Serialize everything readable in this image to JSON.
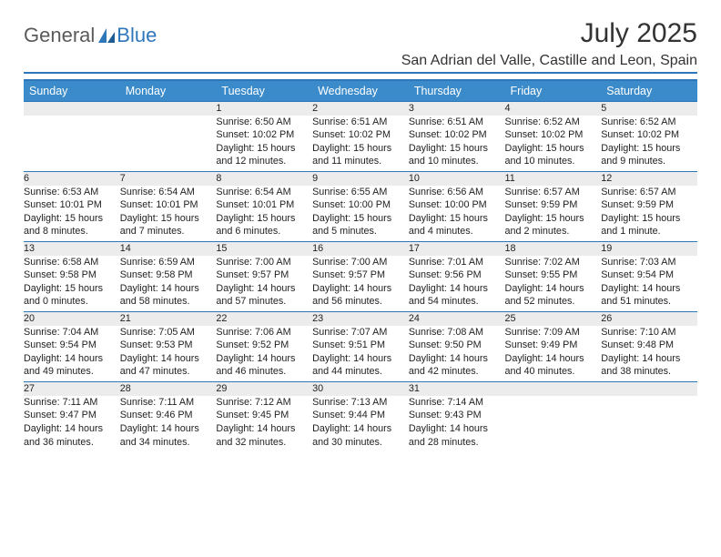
{
  "logo": {
    "general": "General",
    "blue": "Blue"
  },
  "title": "July 2025",
  "location": "San Adrian del Valle, Castille and Leon, Spain",
  "colors": {
    "header_bg": "#3b8bca",
    "accent_line": "#2f77bb",
    "daynum_bg": "#ececec",
    "text": "#222222",
    "logo_gray": "#5a5a5a",
    "logo_blue": "#2f77bb"
  },
  "table": {
    "columns": [
      "Sunday",
      "Monday",
      "Tuesday",
      "Wednesday",
      "Thursday",
      "Friday",
      "Saturday"
    ],
    "weeks": [
      {
        "nums": [
          "",
          "",
          "1",
          "2",
          "3",
          "4",
          "5"
        ],
        "cells": [
          {
            "sunrise": "",
            "sunset": "",
            "daylight": ""
          },
          {
            "sunrise": "",
            "sunset": "",
            "daylight": ""
          },
          {
            "sunrise": "Sunrise: 6:50 AM",
            "sunset": "Sunset: 10:02 PM",
            "daylight": "Daylight: 15 hours and 12 minutes."
          },
          {
            "sunrise": "Sunrise: 6:51 AM",
            "sunset": "Sunset: 10:02 PM",
            "daylight": "Daylight: 15 hours and 11 minutes."
          },
          {
            "sunrise": "Sunrise: 6:51 AM",
            "sunset": "Sunset: 10:02 PM",
            "daylight": "Daylight: 15 hours and 10 minutes."
          },
          {
            "sunrise": "Sunrise: 6:52 AM",
            "sunset": "Sunset: 10:02 PM",
            "daylight": "Daylight: 15 hours and 10 minutes."
          },
          {
            "sunrise": "Sunrise: 6:52 AM",
            "sunset": "Sunset: 10:02 PM",
            "daylight": "Daylight: 15 hours and 9 minutes."
          }
        ]
      },
      {
        "nums": [
          "6",
          "7",
          "8",
          "9",
          "10",
          "11",
          "12"
        ],
        "cells": [
          {
            "sunrise": "Sunrise: 6:53 AM",
            "sunset": "Sunset: 10:01 PM",
            "daylight": "Daylight: 15 hours and 8 minutes."
          },
          {
            "sunrise": "Sunrise: 6:54 AM",
            "sunset": "Sunset: 10:01 PM",
            "daylight": "Daylight: 15 hours and 7 minutes."
          },
          {
            "sunrise": "Sunrise: 6:54 AM",
            "sunset": "Sunset: 10:01 PM",
            "daylight": "Daylight: 15 hours and 6 minutes."
          },
          {
            "sunrise": "Sunrise: 6:55 AM",
            "sunset": "Sunset: 10:00 PM",
            "daylight": "Daylight: 15 hours and 5 minutes."
          },
          {
            "sunrise": "Sunrise: 6:56 AM",
            "sunset": "Sunset: 10:00 PM",
            "daylight": "Daylight: 15 hours and 4 minutes."
          },
          {
            "sunrise": "Sunrise: 6:57 AM",
            "sunset": "Sunset: 9:59 PM",
            "daylight": "Daylight: 15 hours and 2 minutes."
          },
          {
            "sunrise": "Sunrise: 6:57 AM",
            "sunset": "Sunset: 9:59 PM",
            "daylight": "Daylight: 15 hours and 1 minute."
          }
        ]
      },
      {
        "nums": [
          "13",
          "14",
          "15",
          "16",
          "17",
          "18",
          "19"
        ],
        "cells": [
          {
            "sunrise": "Sunrise: 6:58 AM",
            "sunset": "Sunset: 9:58 PM",
            "daylight": "Daylight: 15 hours and 0 minutes."
          },
          {
            "sunrise": "Sunrise: 6:59 AM",
            "sunset": "Sunset: 9:58 PM",
            "daylight": "Daylight: 14 hours and 58 minutes."
          },
          {
            "sunrise": "Sunrise: 7:00 AM",
            "sunset": "Sunset: 9:57 PM",
            "daylight": "Daylight: 14 hours and 57 minutes."
          },
          {
            "sunrise": "Sunrise: 7:00 AM",
            "sunset": "Sunset: 9:57 PM",
            "daylight": "Daylight: 14 hours and 56 minutes."
          },
          {
            "sunrise": "Sunrise: 7:01 AM",
            "sunset": "Sunset: 9:56 PM",
            "daylight": "Daylight: 14 hours and 54 minutes."
          },
          {
            "sunrise": "Sunrise: 7:02 AM",
            "sunset": "Sunset: 9:55 PM",
            "daylight": "Daylight: 14 hours and 52 minutes."
          },
          {
            "sunrise": "Sunrise: 7:03 AM",
            "sunset": "Sunset: 9:54 PM",
            "daylight": "Daylight: 14 hours and 51 minutes."
          }
        ]
      },
      {
        "nums": [
          "20",
          "21",
          "22",
          "23",
          "24",
          "25",
          "26"
        ],
        "cells": [
          {
            "sunrise": "Sunrise: 7:04 AM",
            "sunset": "Sunset: 9:54 PM",
            "daylight": "Daylight: 14 hours and 49 minutes."
          },
          {
            "sunrise": "Sunrise: 7:05 AM",
            "sunset": "Sunset: 9:53 PM",
            "daylight": "Daylight: 14 hours and 47 minutes."
          },
          {
            "sunrise": "Sunrise: 7:06 AM",
            "sunset": "Sunset: 9:52 PM",
            "daylight": "Daylight: 14 hours and 46 minutes."
          },
          {
            "sunrise": "Sunrise: 7:07 AM",
            "sunset": "Sunset: 9:51 PM",
            "daylight": "Daylight: 14 hours and 44 minutes."
          },
          {
            "sunrise": "Sunrise: 7:08 AM",
            "sunset": "Sunset: 9:50 PM",
            "daylight": "Daylight: 14 hours and 42 minutes."
          },
          {
            "sunrise": "Sunrise: 7:09 AM",
            "sunset": "Sunset: 9:49 PM",
            "daylight": "Daylight: 14 hours and 40 minutes."
          },
          {
            "sunrise": "Sunrise: 7:10 AM",
            "sunset": "Sunset: 9:48 PM",
            "daylight": "Daylight: 14 hours and 38 minutes."
          }
        ]
      },
      {
        "nums": [
          "27",
          "28",
          "29",
          "30",
          "31",
          "",
          ""
        ],
        "cells": [
          {
            "sunrise": "Sunrise: 7:11 AM",
            "sunset": "Sunset: 9:47 PM",
            "daylight": "Daylight: 14 hours and 36 minutes."
          },
          {
            "sunrise": "Sunrise: 7:11 AM",
            "sunset": "Sunset: 9:46 PM",
            "daylight": "Daylight: 14 hours and 34 minutes."
          },
          {
            "sunrise": "Sunrise: 7:12 AM",
            "sunset": "Sunset: 9:45 PM",
            "daylight": "Daylight: 14 hours and 32 minutes."
          },
          {
            "sunrise": "Sunrise: 7:13 AM",
            "sunset": "Sunset: 9:44 PM",
            "daylight": "Daylight: 14 hours and 30 minutes."
          },
          {
            "sunrise": "Sunrise: 7:14 AM",
            "sunset": "Sunset: 9:43 PM",
            "daylight": "Daylight: 14 hours and 28 minutes."
          },
          {
            "sunrise": "",
            "sunset": "",
            "daylight": ""
          },
          {
            "sunrise": "",
            "sunset": "",
            "daylight": ""
          }
        ]
      }
    ]
  }
}
